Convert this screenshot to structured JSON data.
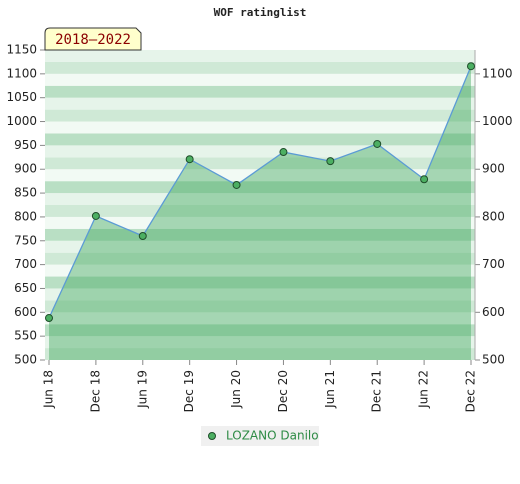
{
  "chart_data": {
    "type": "line",
    "title": "WOF ratinglist",
    "annotation": "2018–2022",
    "categories": [
      "Jun 18",
      "Dec 18",
      "Jun 19",
      "Dec 19",
      "Jun 20",
      "Dec 20",
      "Jun 21",
      "Dec 21",
      "Jun 22",
      "Dec 22"
    ],
    "series": [
      {
        "name": "LOZANO Danilo",
        "color": "#5b9bd5",
        "marker_color": "#4caf62",
        "values": [
          588,
          802,
          760,
          921,
          867,
          936,
          917,
          953,
          879,
          1116
        ]
      }
    ],
    "ylim": [
      500,
      1150
    ],
    "yticks": [
      500,
      550,
      600,
      650,
      700,
      750,
      800,
      850,
      900,
      950,
      1000,
      1050,
      1100,
      1150
    ],
    "y2lim": [
      500,
      1150
    ],
    "y2ticks": [
      500,
      600,
      700,
      800,
      900,
      1000,
      1100
    ],
    "legend": "bottom"
  }
}
